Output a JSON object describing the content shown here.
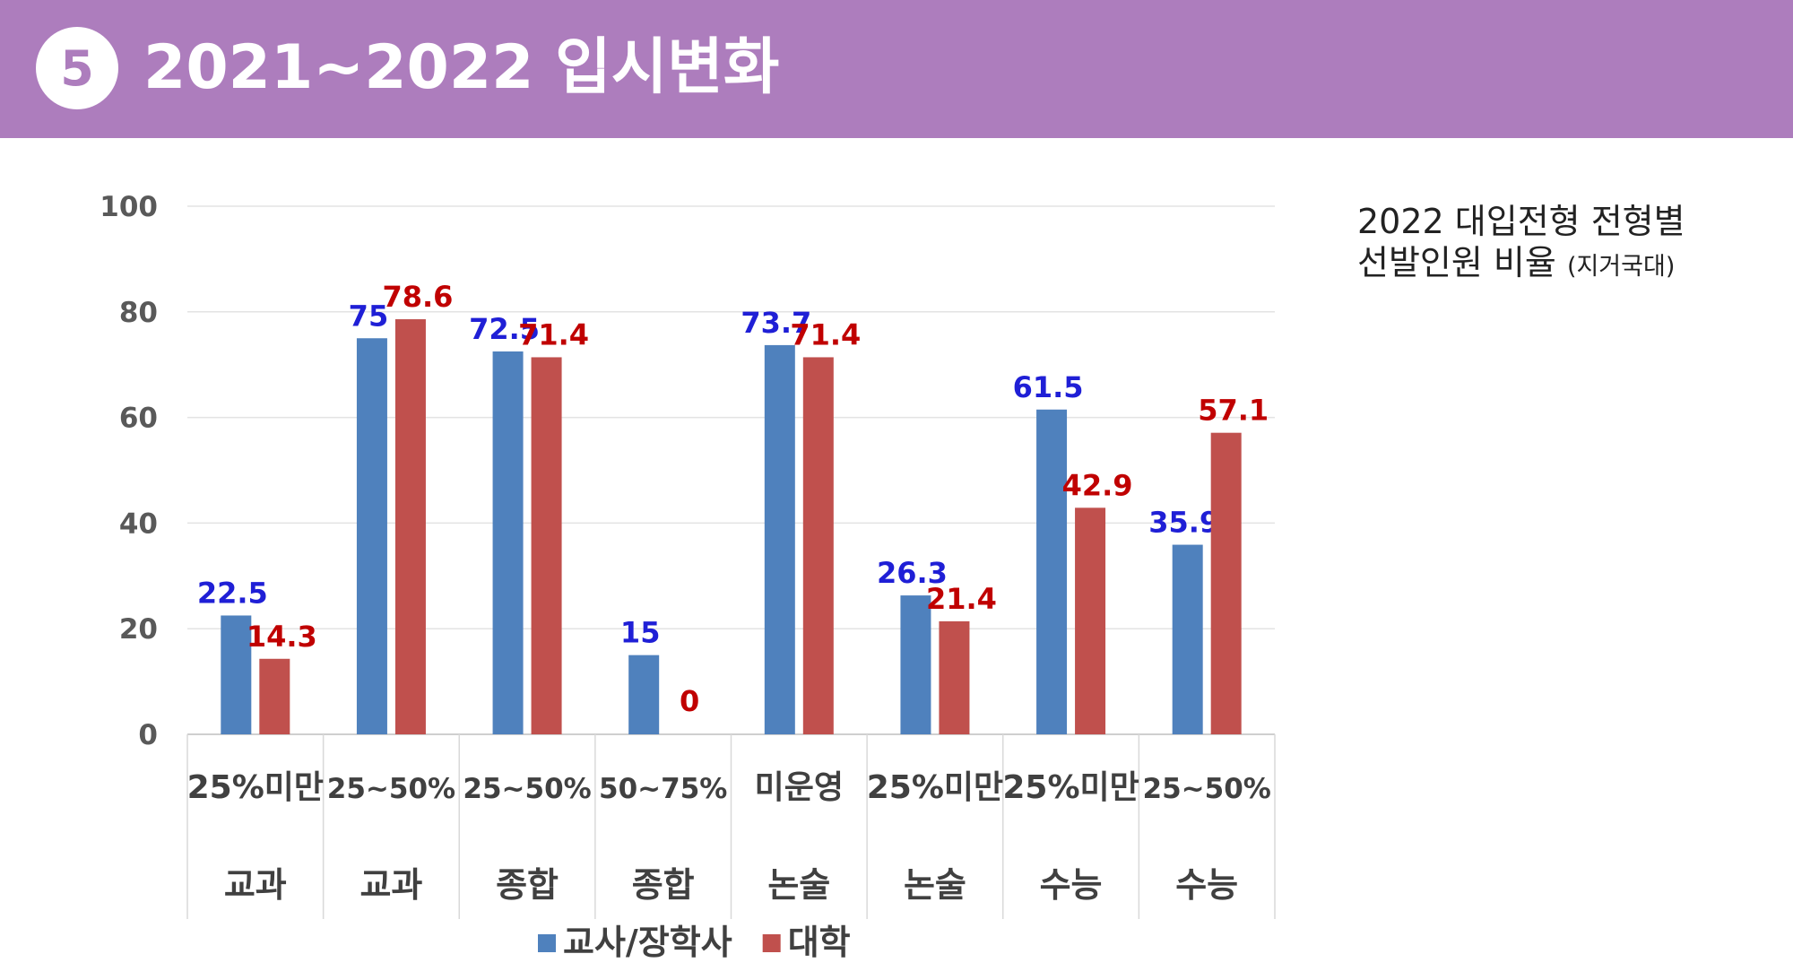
{
  "header": {
    "badge_number": "5",
    "title": "2021~2022 입시변화",
    "background_color": "#ad7dbd"
  },
  "note": {
    "line1": "2022 대입전형 전형별",
    "line2": "선발인원 비율",
    "line2_small": "(지거국대)"
  },
  "chart_data": {
    "type": "bar",
    "categories": [
      [
        "25%미만",
        "교과"
      ],
      [
        "25~50%",
        "교과"
      ],
      [
        "25~50%",
        "종합"
      ],
      [
        "50~75%",
        "종합"
      ],
      [
        "미운영",
        "논술"
      ],
      [
        "25%미만",
        "논술"
      ],
      [
        "25%미만",
        "수능"
      ],
      [
        "25~50%",
        "수능"
      ]
    ],
    "series": [
      {
        "name": "교사/장학사",
        "values": [
          22.5,
          75,
          72.5,
          15,
          73.7,
          26.3,
          61.5,
          35.9
        ],
        "color": "#4f81bd",
        "label_color": "#1f1fd6"
      },
      {
        "name": "대학",
        "values": [
          14.3,
          78.6,
          71.4,
          0,
          71.4,
          21.4,
          42.9,
          57.1
        ],
        "color": "#c0504d",
        "label_color": "#c00000"
      }
    ],
    "ylim": [
      0,
      100
    ],
    "yticks": [
      0,
      20,
      40,
      60,
      80,
      100
    ],
    "grid": true,
    "legend": "bottom-center"
  }
}
